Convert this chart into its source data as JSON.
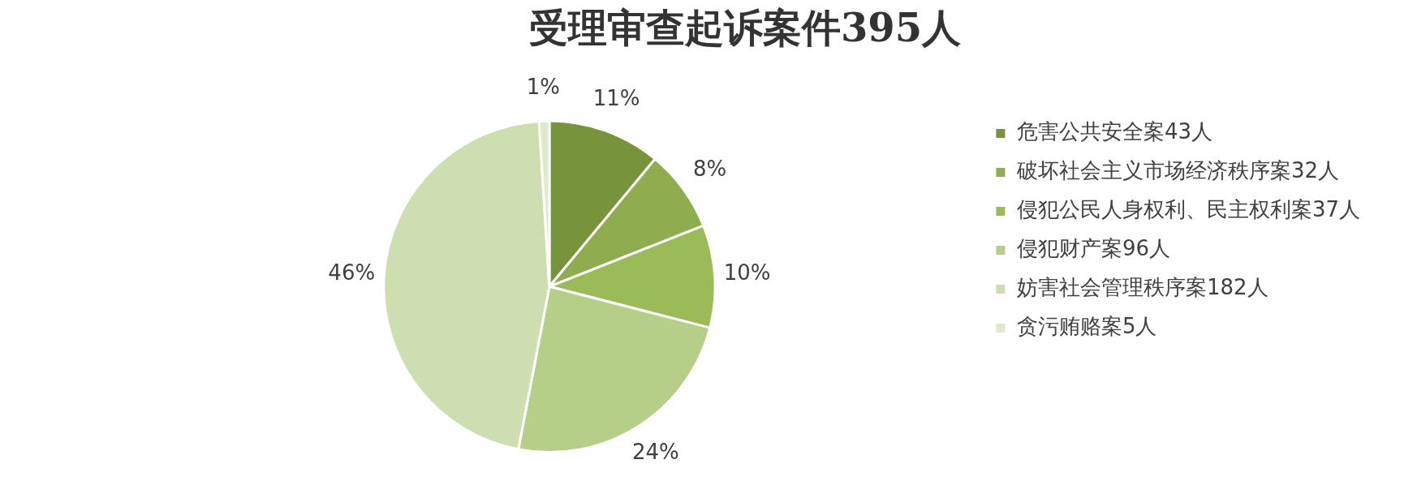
{
  "chart_data": {
    "type": "pie",
    "title": "受理审查起诉案件395人",
    "categories": [
      "危害公共安全案43人",
      "破坏社会主义市场经济秩序案32人",
      "侵犯公民人身权利、民主权利案37人",
      "侵犯财产案96人",
      "妨害社会管理秩序案182人",
      "贪污贿赂案5人"
    ],
    "values": [
      11,
      8,
      10,
      24,
      46,
      1
    ],
    "value_labels": [
      "11%",
      "8%",
      "10%",
      "24%",
      "46%",
      "1%"
    ],
    "colors": [
      "#77933c",
      "#8fad4f",
      "#9bbb59",
      "#b5cf88",
      "#cddfb0",
      "#dfeacb"
    ],
    "legend": "right"
  }
}
